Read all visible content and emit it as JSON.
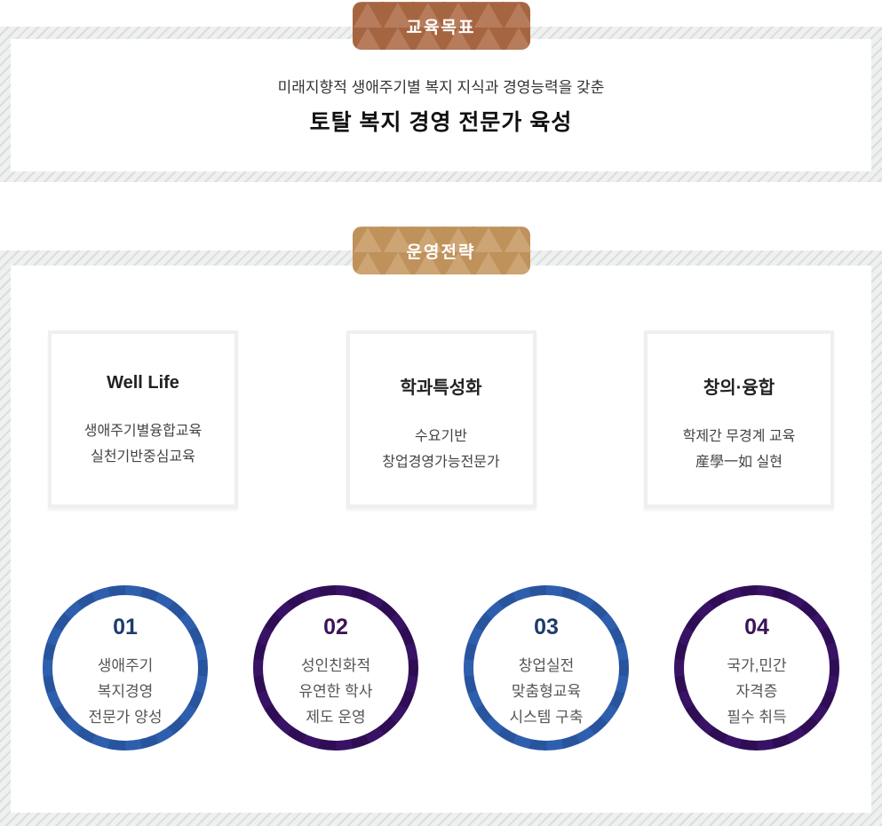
{
  "colors": {
    "badge_goal_bg": "#ab6843",
    "badge_strategy_bg": "#c5965e",
    "circle_blue": "#2e5fae",
    "circle_purple": "#381264",
    "number_blue": "#1d3c6c",
    "number_purple": "#3a1458",
    "stripe_bg": "#eff0f0",
    "stripe_line": "#dadddd",
    "card_border": "#edeff1"
  },
  "goal_section": {
    "badge_label": "교육목표",
    "subtitle": "미래지향적 생애주기별 복지 지식과 경영능력을 갖춘",
    "title": "토탈 복지 경영 전문가 육성"
  },
  "strategy_section": {
    "badge_label": "운영전략",
    "cards": [
      {
        "title": "Well Life",
        "lines": [
          "생애주기별융합교육",
          "실천기반중심교육"
        ]
      },
      {
        "title": "학과특성화",
        "lines": [
          "수요기반",
          "창업경영가능전문가"
        ]
      },
      {
        "title": "창의·융합",
        "lines": [
          "학제간 무경계 교육",
          "産學一如 실현"
        ]
      }
    ],
    "circles": [
      {
        "number": "01",
        "theme": "blue",
        "lines": [
          "생애주기",
          "복지경영",
          "전문가 양성"
        ]
      },
      {
        "number": "02",
        "theme": "purple",
        "lines": [
          "성인친화적",
          "유연한 학사",
          "제도 운영"
        ]
      },
      {
        "number": "03",
        "theme": "blue",
        "lines": [
          "창업실전",
          "맞춤형교육",
          "시스템 구축"
        ]
      },
      {
        "number": "04",
        "theme": "purple",
        "lines": [
          "국가,민간",
          "자격증",
          "필수 취득"
        ]
      }
    ]
  }
}
